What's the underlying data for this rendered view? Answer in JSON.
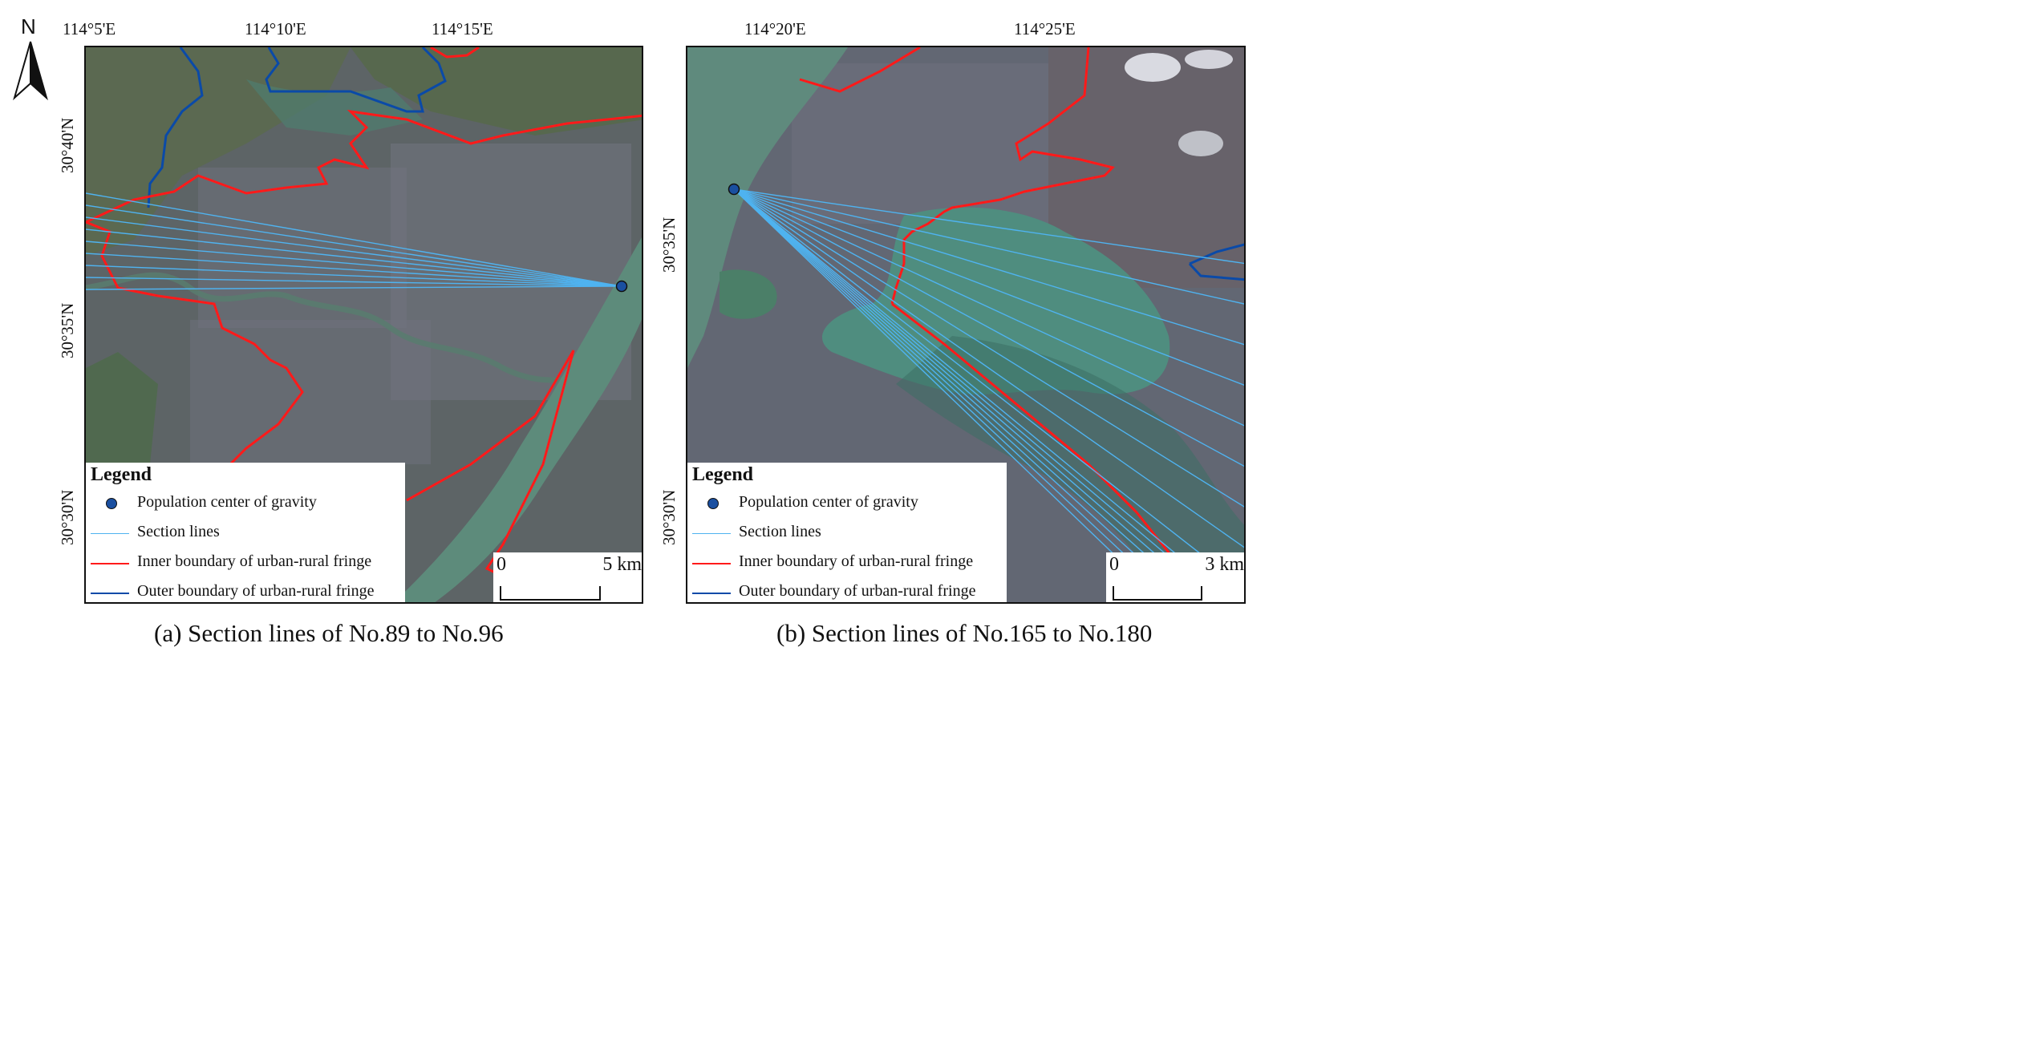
{
  "north_arrow": {
    "label": "N"
  },
  "panel_a": {
    "lon_labels": [
      "114°5'E",
      "114°10'E",
      "114°15'E"
    ],
    "lat_labels": [
      "30°40'N",
      "30°35'N",
      "30°30'N"
    ],
    "legend": {
      "title": "Legend",
      "items": [
        {
          "label": "Population center of gravity",
          "symbol": "dot"
        },
        {
          "label": "Section lines",
          "symbol": "line",
          "color": "#4fb3f0"
        },
        {
          "label": "Inner boundary of urban-rural fringe",
          "symbol": "line",
          "color": "#ff1a1a"
        },
        {
          "label": "Outer boundary of urban-rural fringe",
          "symbol": "line",
          "color": "#0a4aa8"
        }
      ]
    },
    "scale": {
      "zero": "0",
      "dist": "5 km"
    },
    "caption": "(a) Section lines of No.89 to No.96"
  },
  "panel_b": {
    "lon_labels": [
      "114°20'E",
      "114°25'E"
    ],
    "lat_labels": [
      "30°35'N",
      "30°30'N"
    ],
    "legend": {
      "title": "Legend",
      "items": [
        {
          "label": "Population center of gravity",
          "symbol": "dot"
        },
        {
          "label": "Section lines",
          "symbol": "line",
          "color": "#4fb3f0"
        },
        {
          "label": "Inner boundary of urban-rural fringe",
          "symbol": "line",
          "color": "#ff1a1a"
        },
        {
          "label": "Outer boundary of urban-rural fringe",
          "symbol": "line",
          "color": "#0a4aa8"
        }
      ]
    },
    "scale": {
      "zero": "0",
      "dist": "3 km"
    },
    "caption": "(b) Section lines of No.165 to No.180"
  },
  "colors": {
    "section_line": "#4fb3f0",
    "inner_boundary": "#ff1a1a",
    "outer_boundary": "#0a4aa8",
    "center_dot": "#1a4fa0",
    "water": "#4f8a7a",
    "urban": "#6b6e78",
    "vegetation": "#4c5e42"
  }
}
